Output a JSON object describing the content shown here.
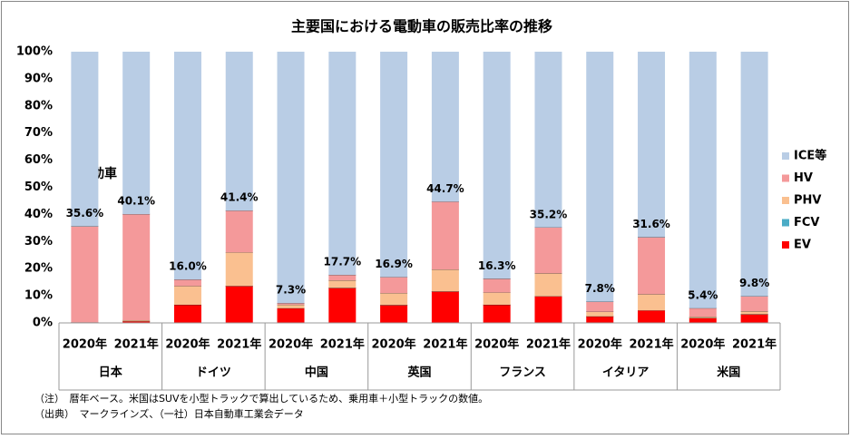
{
  "chart_data": {
    "type": "stacked_bar",
    "title": "主要国における電動車の販売比率の推移",
    "categories": [
      "2020年",
      "2021年",
      "2020年",
      "2021年",
      "2020年",
      "2021年",
      "2020年",
      "2021年",
      "2020年",
      "2021年",
      "2020年",
      "2021年",
      "2020年",
      "2021年"
    ],
    "groups": [
      "日本",
      "ドイツ",
      "中国",
      "英国",
      "フランス",
      "イタリア",
      "米国"
    ],
    "series": [
      {
        "name": "EV",
        "color": "#ff0000",
        "values": [
          0.1,
          0.6,
          6.7,
          13.6,
          5.4,
          12.9,
          6.6,
          11.6,
          6.7,
          9.8,
          2.4,
          4.6,
          1.8,
          3.2
        ]
      },
      {
        "name": "FCV",
        "color": "#4bacc6",
        "values": [
          0,
          0,
          0,
          0,
          0,
          0,
          0,
          0,
          0,
          0,
          0,
          0,
          0,
          0
        ]
      },
      {
        "name": "PHV",
        "color": "#fac090",
        "values": [
          0.1,
          0.4,
          6.9,
          12.4,
          1.3,
          2.8,
          4.4,
          8.1,
          4.5,
          8.5,
          1.7,
          6.0,
          0.5,
          1.1
        ]
      },
      {
        "name": "HV",
        "color": "#f4999a",
        "values": [
          35.4,
          39.1,
          2.4,
          15.4,
          0.6,
          2.0,
          5.9,
          25.0,
          5.1,
          16.9,
          3.7,
          21.0,
          3.1,
          5.5
        ]
      },
      {
        "name": "ICE等",
        "color": "#b9cde5",
        "values": [
          64.4,
          59.9,
          84.0,
          58.6,
          92.7,
          82.3,
          83.1,
          55.3,
          83.7,
          64.8,
          92.2,
          68.4,
          94.6,
          90.2
        ]
      }
    ],
    "value_labels": [
      "35.6%",
      "40.1%",
      "16.0%",
      "41.4%",
      "7.3%",
      "17.7%",
      "16.9%",
      "44.7%",
      "16.3%",
      "35.2%",
      "7.8%",
      "31.6%",
      "5.4%",
      "9.8%"
    ],
    "annotation": "電動車",
    "notes": [
      "（注）　暦年ベース。米国はSUVを小型トラックで算出しているため、乗用車＋小型トラックの数値。",
      "（出典）　マークラインズ、（一社）日本自動車工業会データ"
    ],
    "ylim": [
      0,
      100
    ],
    "yticks": [
      {
        "value": 0,
        "label": "0%"
      },
      {
        "value": 10,
        "label": "10%"
      },
      {
        "value": 20,
        "label": "20%"
      },
      {
        "value": 30,
        "label": "30%"
      },
      {
        "value": 40,
        "label": "40%"
      },
      {
        "value": 50,
        "label": "50%"
      },
      {
        "value": 60,
        "label": "60%"
      },
      {
        "value": 70,
        "label": "70%"
      },
      {
        "value": 80,
        "label": "80%"
      },
      {
        "value": 90,
        "label": "90%"
      },
      {
        "value": 100,
        "label": "100%"
      }
    ],
    "legend": "right"
  }
}
